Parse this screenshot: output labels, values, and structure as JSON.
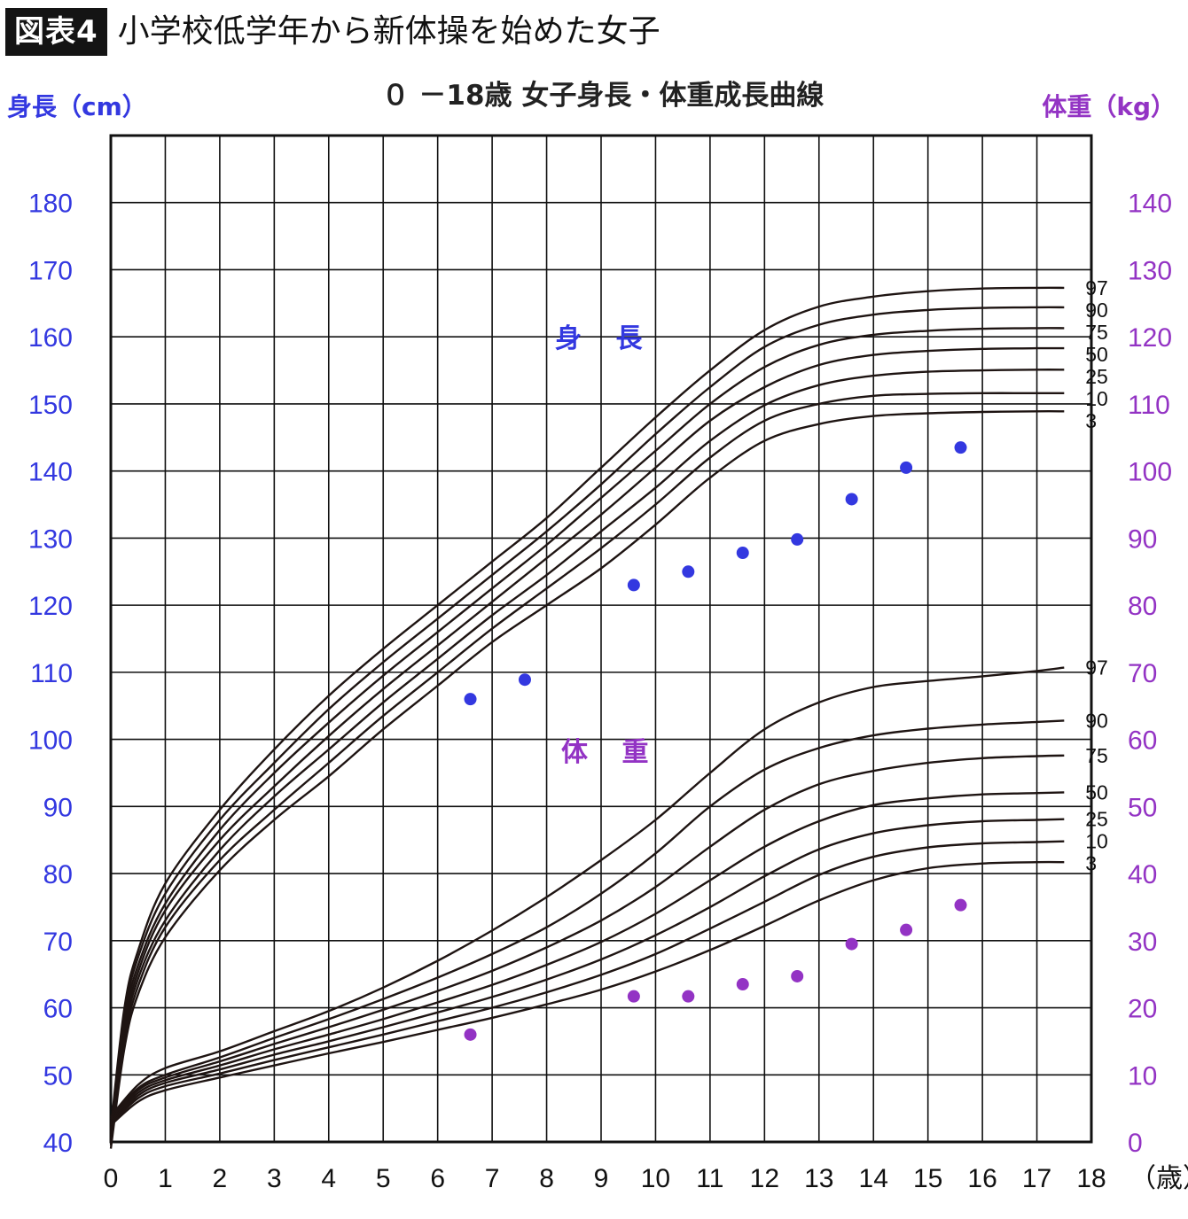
{
  "header": {
    "badge": "図表4",
    "title": "小学校低学年から新体操を始めた女子"
  },
  "colors": {
    "height": "#3338e0",
    "weight": "#9333c4",
    "curve": "#1e1412",
    "grid": "#111111",
    "badge_bg": "#141414"
  },
  "chart_data": {
    "type": "line",
    "title": "０ －18歳 女子身長・体重成長曲線",
    "y_left_label": "身長（cm）",
    "y_right_label": "体重（kg）",
    "x_unit_label": "（歳）",
    "xlim": [
      0,
      18
    ],
    "y_left_lim": [
      40,
      180
    ],
    "y_right_lim": [
      0,
      140
    ],
    "grid": true,
    "x_ticks": [
      "0",
      "1",
      "2",
      "3",
      "4",
      "5",
      "6",
      "7",
      "8",
      "9",
      "10",
      "11",
      "12",
      "13",
      "14",
      "15",
      "16",
      "17",
      "18"
    ],
    "y_left_ticks": [
      "40",
      "50",
      "60",
      "70",
      "80",
      "90",
      "100",
      "110",
      "120",
      "130",
      "140",
      "150",
      "160",
      "170",
      "180"
    ],
    "y_right_ticks": [
      "0",
      "10",
      "20",
      "30",
      "40",
      "50",
      "60",
      "70",
      "80",
      "90",
      "100",
      "110",
      "120",
      "130",
      "140"
    ],
    "height_label": "身 長",
    "weight_label": "体 重",
    "height_percentiles": [
      {
        "name": "97",
        "points": [
          [
            0,
            42
          ],
          [
            0.25,
            60
          ],
          [
            0.5,
            68.5
          ],
          [
            1,
            78.5
          ],
          [
            2,
            89.5
          ],
          [
            3,
            98.5
          ],
          [
            4,
            106.5
          ],
          [
            5,
            113.5
          ],
          [
            6,
            120
          ],
          [
            7,
            126.5
          ],
          [
            8,
            133
          ],
          [
            9,
            140.5
          ],
          [
            10,
            148
          ],
          [
            11,
            155
          ],
          [
            12,
            161
          ],
          [
            13,
            164.5
          ],
          [
            14,
            166
          ],
          [
            15,
            166.8
          ],
          [
            16,
            167.2
          ],
          [
            17,
            167.3
          ],
          [
            17.5,
            167.3
          ]
        ]
      },
      {
        "name": "90",
        "points": [
          [
            0,
            41.5
          ],
          [
            0.25,
            59
          ],
          [
            0.5,
            67.5
          ],
          [
            1,
            77
          ],
          [
            2,
            88
          ],
          [
            3,
            96.5
          ],
          [
            4,
            104.5
          ],
          [
            5,
            111.5
          ],
          [
            6,
            118
          ],
          [
            7,
            124.5
          ],
          [
            8,
            131
          ],
          [
            9,
            138
          ],
          [
            10,
            145.5
          ],
          [
            11,
            152.5
          ],
          [
            12,
            158.5
          ],
          [
            13,
            161.8
          ],
          [
            14,
            163.3
          ],
          [
            15,
            164
          ],
          [
            16,
            164.3
          ],
          [
            17,
            164.4
          ],
          [
            17.5,
            164.4
          ]
        ]
      },
      {
        "name": "75",
        "points": [
          [
            0,
            41
          ],
          [
            0.25,
            58
          ],
          [
            0.5,
            66.3
          ],
          [
            1,
            75.5
          ],
          [
            2,
            86.5
          ],
          [
            3,
            95
          ],
          [
            4,
            102.5
          ],
          [
            5,
            109.5
          ],
          [
            6,
            116
          ],
          [
            7,
            122.5
          ],
          [
            8,
            129
          ],
          [
            9,
            136
          ],
          [
            10,
            143
          ],
          [
            11,
            150
          ],
          [
            12,
            155.5
          ],
          [
            13,
            158.8
          ],
          [
            14,
            160.3
          ],
          [
            15,
            160.9
          ],
          [
            16,
            161.2
          ],
          [
            17,
            161.3
          ],
          [
            17.5,
            161.3
          ]
        ]
      },
      {
        "name": "50",
        "points": [
          [
            0,
            40.5
          ],
          [
            0.25,
            57
          ],
          [
            0.5,
            65.3
          ],
          [
            1,
            74.5
          ],
          [
            2,
            85
          ],
          [
            3,
            93
          ],
          [
            4,
            100.5
          ],
          [
            5,
            107.5
          ],
          [
            6,
            114
          ],
          [
            7,
            120.5
          ],
          [
            8,
            127
          ],
          [
            9,
            133.5
          ],
          [
            10,
            140.5
          ],
          [
            11,
            147.5
          ],
          [
            12,
            152.5
          ],
          [
            13,
            155.8
          ],
          [
            14,
            157.3
          ],
          [
            15,
            157.9
          ],
          [
            16,
            158.2
          ],
          [
            17,
            158.3
          ],
          [
            17.5,
            158.3
          ]
        ]
      },
      {
        "name": "25",
        "points": [
          [
            0,
            40
          ],
          [
            0.25,
            56
          ],
          [
            0.5,
            64.3
          ],
          [
            1,
            73
          ],
          [
            2,
            83.5
          ],
          [
            3,
            91.5
          ],
          [
            4,
            98.5
          ],
          [
            5,
            105.5
          ],
          [
            6,
            112
          ],
          [
            7,
            118.5
          ],
          [
            8,
            124.5
          ],
          [
            9,
            131
          ],
          [
            10,
            137.5
          ],
          [
            11,
            144.5
          ],
          [
            12,
            149.8
          ],
          [
            13,
            152.8
          ],
          [
            14,
            154.2
          ],
          [
            15,
            154.8
          ],
          [
            16,
            155
          ],
          [
            17,
            155.1
          ],
          [
            17.5,
            155.1
          ]
        ]
      },
      {
        "name": "10",
        "points": [
          [
            0,
            39.5
          ],
          [
            0.25,
            55
          ],
          [
            0.5,
            63.2
          ],
          [
            1,
            72
          ],
          [
            2,
            82
          ],
          [
            3,
            89.5
          ],
          [
            4,
            96.5
          ],
          [
            5,
            103.5
          ],
          [
            6,
            110
          ],
          [
            7,
            116.5
          ],
          [
            8,
            122.5
          ],
          [
            9,
            128.5
          ],
          [
            10,
            135
          ],
          [
            11,
            142
          ],
          [
            12,
            147.5
          ],
          [
            13,
            150
          ],
          [
            14,
            151.2
          ],
          [
            15,
            151.5
          ],
          [
            16,
            151.6
          ],
          [
            17,
            151.6
          ],
          [
            17.5,
            151.6
          ]
        ]
      },
      {
        "name": "3",
        "points": [
          [
            0,
            39
          ],
          [
            0.25,
            54
          ],
          [
            0.5,
            62
          ],
          [
            1,
            70.5
          ],
          [
            2,
            80.5
          ],
          [
            3,
            88
          ],
          [
            4,
            94.5
          ],
          [
            5,
            101.5
          ],
          [
            6,
            108
          ],
          [
            7,
            114.5
          ],
          [
            8,
            120
          ],
          [
            9,
            125.5
          ],
          [
            10,
            132
          ],
          [
            11,
            139
          ],
          [
            12,
            144.5
          ],
          [
            13,
            147
          ],
          [
            14,
            148.2
          ],
          [
            15,
            148.6
          ],
          [
            16,
            148.8
          ],
          [
            17,
            148.9
          ],
          [
            17.5,
            148.9
          ]
        ]
      }
    ],
    "weight_percentiles": [
      {
        "name": "97",
        "points": [
          [
            0,
            3.8
          ],
          [
            0.5,
            8.5
          ],
          [
            1,
            11
          ],
          [
            2,
            13.5
          ],
          [
            3,
            16.5
          ],
          [
            4,
            19.5
          ],
          [
            5,
            23
          ],
          [
            6,
            27
          ],
          [
            7,
            31.5
          ],
          [
            8,
            36.5
          ],
          [
            9,
            42
          ],
          [
            10,
            48
          ],
          [
            11,
            55
          ],
          [
            12,
            61.5
          ],
          [
            13,
            65.5
          ],
          [
            14,
            67.8
          ],
          [
            15,
            68.7
          ],
          [
            16,
            69.4
          ],
          [
            17,
            70.2
          ],
          [
            17.5,
            70.7
          ]
        ]
      },
      {
        "name": "90",
        "points": [
          [
            0,
            3.6
          ],
          [
            0.5,
            8
          ],
          [
            1,
            10
          ],
          [
            2,
            12.6
          ],
          [
            3,
            15.5
          ],
          [
            4,
            18.3
          ],
          [
            5,
            21.3
          ],
          [
            6,
            24.5
          ],
          [
            7,
            28
          ],
          [
            8,
            32
          ],
          [
            9,
            37
          ],
          [
            10,
            43
          ],
          [
            11,
            50
          ],
          [
            12,
            55.5
          ],
          [
            13,
            58.7
          ],
          [
            14,
            60.6
          ],
          [
            15,
            61.6
          ],
          [
            16,
            62.2
          ],
          [
            17,
            62.6
          ],
          [
            17.5,
            62.8
          ]
        ]
      },
      {
        "name": "75",
        "points": [
          [
            0,
            3.4
          ],
          [
            0.5,
            7.7
          ],
          [
            1,
            9.6
          ],
          [
            2,
            12
          ],
          [
            3,
            14.6
          ],
          [
            4,
            17.1
          ],
          [
            5,
            19.7
          ],
          [
            6,
            22.5
          ],
          [
            7,
            25.5
          ],
          [
            8,
            29
          ],
          [
            9,
            33
          ],
          [
            10,
            38
          ],
          [
            11,
            44
          ],
          [
            12,
            49.5
          ],
          [
            13,
            53.3
          ],
          [
            14,
            55.3
          ],
          [
            15,
            56.5
          ],
          [
            16,
            57.2
          ],
          [
            17,
            57.5
          ],
          [
            17.5,
            57.6
          ]
        ]
      },
      {
        "name": "50",
        "points": [
          [
            0,
            3.1
          ],
          [
            0.5,
            7.3
          ],
          [
            1,
            9.2
          ],
          [
            2,
            11.4
          ],
          [
            3,
            13.8
          ],
          [
            4,
            16
          ],
          [
            5,
            18.3
          ],
          [
            6,
            20.8
          ],
          [
            7,
            23.4
          ],
          [
            8,
            26.4
          ],
          [
            9,
            29.8
          ],
          [
            10,
            34
          ],
          [
            11,
            39
          ],
          [
            12,
            44
          ],
          [
            13,
            47.8
          ],
          [
            14,
            50.2
          ],
          [
            15,
            51.2
          ],
          [
            16,
            51.8
          ],
          [
            17,
            52
          ],
          [
            17.5,
            52.1
          ]
        ]
      },
      {
        "name": "25",
        "points": [
          [
            0,
            2.9
          ],
          [
            0.5,
            6.9
          ],
          [
            1,
            8.8
          ],
          [
            2,
            10.8
          ],
          [
            3,
            13
          ],
          [
            4,
            15
          ],
          [
            5,
            17.1
          ],
          [
            6,
            19.3
          ],
          [
            7,
            21.6
          ],
          [
            8,
            24.2
          ],
          [
            9,
            27.2
          ],
          [
            10,
            30.8
          ],
          [
            11,
            35
          ],
          [
            12,
            39.6
          ],
          [
            13,
            43.6
          ],
          [
            14,
            46
          ],
          [
            15,
            47.2
          ],
          [
            16,
            47.8
          ],
          [
            17,
            48
          ],
          [
            17.5,
            48.1
          ]
        ]
      },
      {
        "name": "10",
        "points": [
          [
            0,
            2.7
          ],
          [
            0.5,
            6.5
          ],
          [
            1,
            8.3
          ],
          [
            2,
            10.2
          ],
          [
            3,
            12.2
          ],
          [
            4,
            14.1
          ],
          [
            5,
            16
          ],
          [
            6,
            18
          ],
          [
            7,
            20
          ],
          [
            8,
            22.3
          ],
          [
            9,
            24.9
          ],
          [
            10,
            28
          ],
          [
            11,
            31.8
          ],
          [
            12,
            35.8
          ],
          [
            13,
            39.8
          ],
          [
            14,
            42.5
          ],
          [
            15,
            43.9
          ],
          [
            16,
            44.5
          ],
          [
            17,
            44.7
          ],
          [
            17.5,
            44.8
          ]
        ]
      },
      {
        "name": "3",
        "points": [
          [
            0,
            2.5
          ],
          [
            0.5,
            6
          ],
          [
            1,
            7.7
          ],
          [
            2,
            9.6
          ],
          [
            3,
            11.4
          ],
          [
            4,
            13.2
          ],
          [
            5,
            14.9
          ],
          [
            6,
            16.7
          ],
          [
            7,
            18.5
          ],
          [
            8,
            20.5
          ],
          [
            9,
            22.7
          ],
          [
            10,
            25.4
          ],
          [
            11,
            28.6
          ],
          [
            12,
            32.2
          ],
          [
            13,
            36
          ],
          [
            14,
            39
          ],
          [
            15,
            40.8
          ],
          [
            16,
            41.5
          ],
          [
            17,
            41.7
          ],
          [
            17.5,
            41.7
          ]
        ]
      }
    ],
    "height_observations": [
      [
        6.6,
        106
      ],
      [
        7.6,
        108.9
      ],
      [
        9.6,
        123
      ],
      [
        10.6,
        125
      ],
      [
        11.6,
        127.8
      ],
      [
        12.6,
        129.8
      ],
      [
        13.6,
        135.8
      ],
      [
        14.6,
        140.5
      ],
      [
        15.6,
        143.5
      ]
    ],
    "weight_observations": [
      [
        6.6,
        16
      ],
      [
        9.6,
        21.7
      ],
      [
        10.6,
        21.7
      ],
      [
        11.6,
        23.5
      ],
      [
        12.6,
        24.7
      ],
      [
        13.6,
        29.5
      ],
      [
        14.6,
        31.6
      ],
      [
        15.6,
        35.3
      ]
    ]
  }
}
